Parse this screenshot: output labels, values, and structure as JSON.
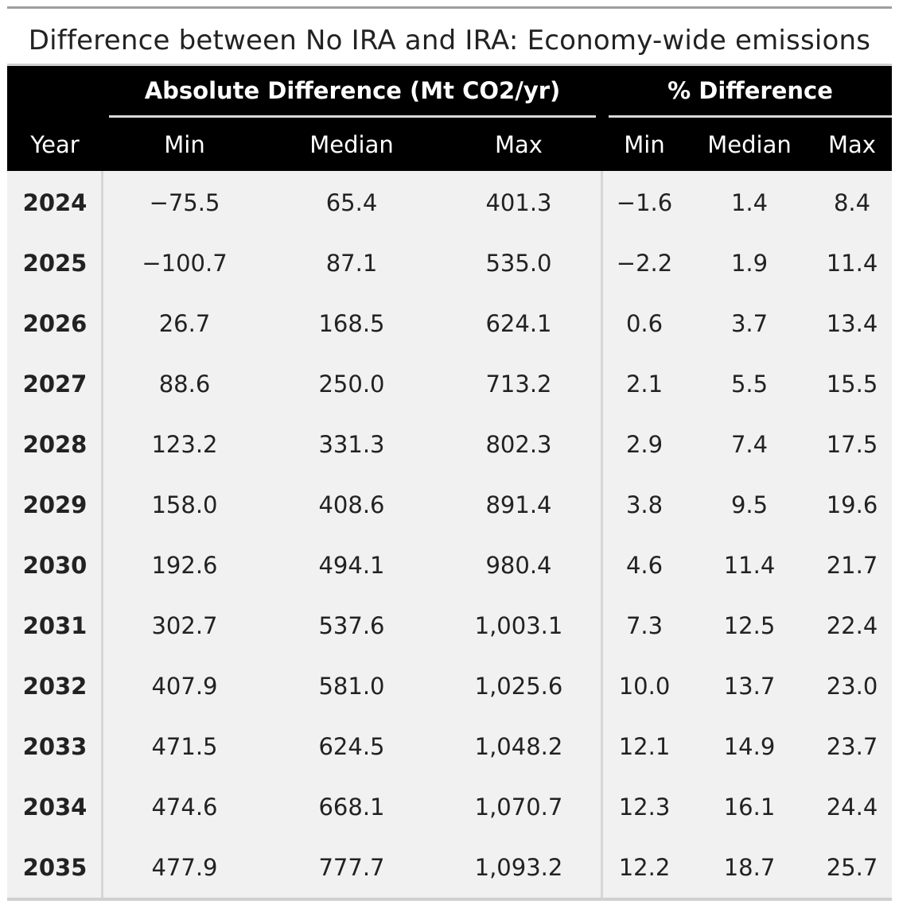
{
  "chart_data": {
    "type": "table",
    "title": "Difference between No IRA and IRA: Economy-wide emissions",
    "spanners": [
      "Absolute Difference (Mt CO2/yr)",
      "% Difference"
    ],
    "columns": [
      "Year",
      "Min",
      "Median",
      "Max",
      "Min",
      "Median",
      "Max"
    ],
    "rows": [
      {
        "year": "2024",
        "abs_min": "−75.5",
        "abs_median": "65.4",
        "abs_max": "401.3",
        "pct_min": "−1.6",
        "pct_median": "1.4",
        "pct_max": "8.4"
      },
      {
        "year": "2025",
        "abs_min": "−100.7",
        "abs_median": "87.1",
        "abs_max": "535.0",
        "pct_min": "−2.2",
        "pct_median": "1.9",
        "pct_max": "11.4"
      },
      {
        "year": "2026",
        "abs_min": "26.7",
        "abs_median": "168.5",
        "abs_max": "624.1",
        "pct_min": "0.6",
        "pct_median": "3.7",
        "pct_max": "13.4"
      },
      {
        "year": "2027",
        "abs_min": "88.6",
        "abs_median": "250.0",
        "abs_max": "713.2",
        "pct_min": "2.1",
        "pct_median": "5.5",
        "pct_max": "15.5"
      },
      {
        "year": "2028",
        "abs_min": "123.2",
        "abs_median": "331.3",
        "abs_max": "802.3",
        "pct_min": "2.9",
        "pct_median": "7.4",
        "pct_max": "17.5"
      },
      {
        "year": "2029",
        "abs_min": "158.0",
        "abs_median": "408.6",
        "abs_max": "891.4",
        "pct_min": "3.8",
        "pct_median": "9.5",
        "pct_max": "19.6"
      },
      {
        "year": "2030",
        "abs_min": "192.6",
        "abs_median": "494.1",
        "abs_max": "980.4",
        "pct_min": "4.6",
        "pct_median": "11.4",
        "pct_max": "21.7"
      },
      {
        "year": "2031",
        "abs_min": "302.7",
        "abs_median": "537.6",
        "abs_max": "1,003.1",
        "pct_min": "7.3",
        "pct_median": "12.5",
        "pct_max": "22.4"
      },
      {
        "year": "2032",
        "abs_min": "407.9",
        "abs_median": "581.0",
        "abs_max": "1,025.6",
        "pct_min": "10.0",
        "pct_median": "13.7",
        "pct_max": "23.0"
      },
      {
        "year": "2033",
        "abs_min": "471.5",
        "abs_median": "624.5",
        "abs_max": "1,048.2",
        "pct_min": "12.1",
        "pct_median": "14.9",
        "pct_max": "23.7"
      },
      {
        "year": "2034",
        "abs_min": "474.6",
        "abs_median": "668.1",
        "abs_max": "1,070.7",
        "pct_min": "12.3",
        "pct_median": "16.1",
        "pct_max": "24.4"
      },
      {
        "year": "2035",
        "abs_min": "477.9",
        "abs_median": "777.7",
        "abs_max": "1,093.2",
        "pct_min": "12.2",
        "pct_median": "18.7",
        "pct_max": "25.7"
      }
    ]
  },
  "colors": {
    "header_bg": "#000000",
    "header_text": "#ffffff",
    "body_bg": "#f1f1f1",
    "text": "#222222",
    "rule": "#d0d0d0"
  }
}
